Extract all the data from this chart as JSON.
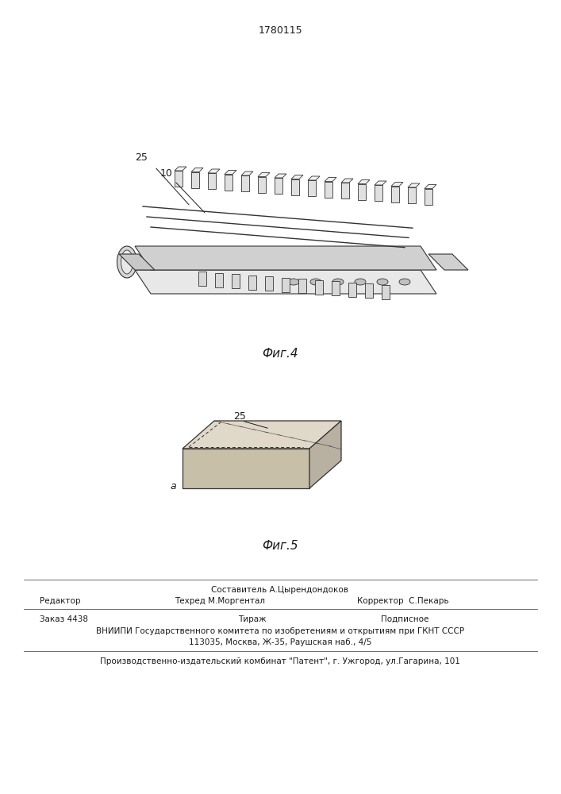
{
  "patent_number": "1780115",
  "fig4_label": "Фиг.4",
  "fig5_label": "Фиг.5",
  "label_25_fig4": "25",
  "label_10_fig4": "10",
  "label_25_fig5": "25",
  "label_a_fig5": "a",
  "footer_editor": "Редактор",
  "footer_sostavitel": "Составитель А.Цырендондоков",
  "footer_tekhred": "Техред М.Моргентал",
  "footer_korrektor": "Корректор  С.Пекарь",
  "footer_zakaz": "Заказ 4438",
  "footer_tirazh": "Тираж",
  "footer_podpisnoe": "Подписное",
  "footer_vniipи": "ВНИИПИ Государственного комитета по изобретениям и открытиям при ГКНТ СССР",
  "footer_address": "113035, Москва, Ж-35, Раушская наб., 4/5",
  "footer_production": "Производственно-издательский комбинат \"Патент\", г. Ужгород, ул.Гагарина, 101",
  "bg_color": "#ffffff",
  "text_color": "#1a1a1a",
  "line_color": "#333333"
}
